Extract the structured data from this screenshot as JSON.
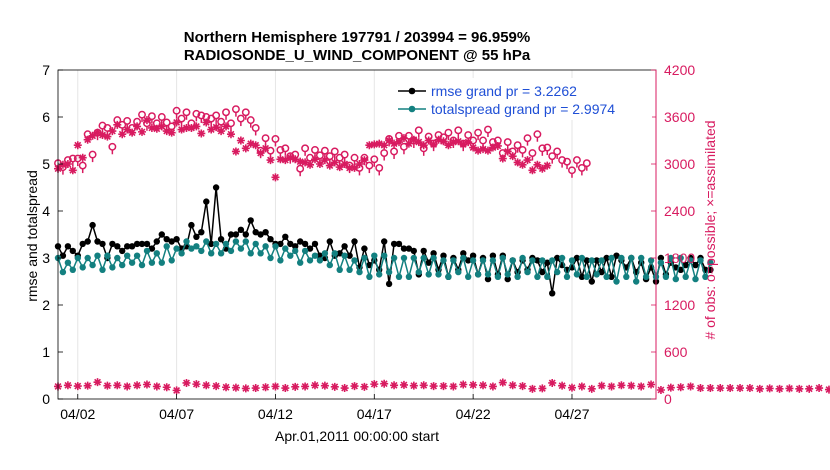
{
  "chart_data": {
    "type": "line",
    "title_line1": "Northern Hemisphere 197791 / 203994 = 96.959%",
    "title_line2": "RADIOSONDE_U_WIND_COMPONENT @ 55 hPa",
    "xlabel": "Apr.01,2011 00:00:00 start",
    "ylabel_left": "rmse and totalspread",
    "ylabel_right": "# of obs: o=possible; ×=assimilated",
    "xlim": [
      0.5,
      30.75
    ],
    "ylim_left": [
      0,
      7
    ],
    "ylim_right": [
      0,
      4200
    ],
    "x_ticks": [
      {
        "x": 1.5,
        "label": "04/02"
      },
      {
        "x": 6.5,
        "label": "04/07"
      },
      {
        "x": 11.5,
        "label": "04/12"
      },
      {
        "x": 16.5,
        "label": "04/17"
      },
      {
        "x": 21.5,
        "label": "04/22"
      },
      {
        "x": 26.5,
        "label": "04/27"
      }
    ],
    "y_ticks_left": [
      "0",
      "1",
      "2",
      "3",
      "4",
      "5",
      "6",
      "7"
    ],
    "y_ticks_right": [
      "0",
      "600",
      "1200",
      "1800",
      "2400",
      "3000",
      "3600",
      "4200"
    ],
    "colors": {
      "rmse": "#000000",
      "totalspread": "#138080",
      "obs": "#d81b60",
      "right_axis": "#d81b60",
      "legend_text": "#1f4fd6"
    },
    "legend": [
      {
        "name": "rmse",
        "label": "rmse grand pr = 3.2262"
      },
      {
        "name": "totalspread",
        "label": "totalspread grand pr = 2.9974"
      }
    ],
    "series": [
      {
        "name": "rmse",
        "axis": "left",
        "x_start": 0.5,
        "x_step": 0.25,
        "values": [
          3.25,
          3.05,
          3.25,
          3.15,
          3.05,
          3.3,
          3.35,
          3.7,
          3.35,
          3.3,
          3.0,
          3.3,
          3.25,
          3.15,
          3.25,
          3.25,
          3.3,
          3.3,
          3.3,
          3.2,
          3.35,
          3.5,
          3.4,
          3.35,
          3.4,
          3.2,
          3.25,
          3.7,
          3.45,
          3.55,
          4.2,
          3.3,
          4.5,
          3.4,
          3.2,
          3.5,
          3.5,
          3.6,
          3.5,
          3.8,
          3.55,
          3.5,
          3.55,
          3.4,
          3.3,
          3.3,
          3.45,
          3.3,
          3.25,
          3.35,
          3.3,
          3.2,
          3.3,
          3.05,
          3.0,
          3.35,
          3.05,
          3.1,
          3.25,
          3.05,
          3.35,
          2.8,
          3.2,
          2.85,
          2.95,
          2.75,
          3.35,
          2.45,
          3.3,
          3.3,
          3.2,
          3.2,
          3.15,
          2.65,
          3.15,
          2.9,
          3.1,
          2.75,
          3.05,
          2.6,
          3.0,
          2.75,
          3.1,
          2.95,
          3.05,
          2.65,
          3.0,
          2.55,
          3.05,
          2.65,
          3.05,
          2.55,
          2.95,
          2.7,
          2.95,
          2.75,
          3.0,
          2.95,
          2.7,
          2.9,
          2.25,
          3.0,
          2.85,
          2.75,
          2.8,
          3.0,
          2.6,
          2.95,
          2.5,
          2.95,
          2.7,
          3.0,
          2.6,
          3.05,
          2.95,
          2.8,
          3.0,
          2.7,
          2.9,
          2.55,
          2.8,
          2.5,
          3.0,
          2.65,
          2.9,
          2.8,
          2.75,
          2.85,
          3.0,
          2.85,
          3.0,
          2.75,
          2.75
        ]
      },
      {
        "name": "totalspread",
        "axis": "left",
        "x_start": 0.5,
        "x_step": 0.25,
        "values": [
          3.0,
          2.7,
          2.9,
          2.75,
          3.0,
          2.8,
          3.0,
          2.85,
          3.05,
          2.75,
          3.05,
          2.8,
          3.0,
          2.85,
          3.05,
          2.9,
          3.05,
          2.85,
          3.15,
          2.9,
          3.1,
          2.9,
          3.25,
          2.95,
          3.2,
          3.1,
          3.35,
          3.2,
          3.25,
          3.15,
          3.35,
          3.1,
          3.3,
          3.1,
          3.3,
          3.15,
          3.35,
          3.2,
          3.35,
          3.1,
          3.3,
          3.1,
          3.25,
          3.0,
          3.25,
          2.95,
          3.2,
          3.05,
          3.15,
          2.9,
          3.15,
          2.95,
          3.05,
          2.95,
          3.1,
          2.85,
          3.1,
          2.75,
          3.05,
          2.75,
          2.95,
          2.7,
          3.0,
          2.6,
          3.05,
          2.65,
          3.05,
          2.7,
          3.0,
          2.6,
          3.0,
          2.6,
          3.0,
          2.7,
          3.0,
          2.65,
          3.0,
          2.65,
          2.95,
          2.6,
          2.95,
          2.7,
          3.0,
          2.6,
          2.95,
          2.65,
          2.95,
          2.65,
          2.95,
          2.6,
          3.0,
          2.65,
          2.95,
          2.6,
          3.0,
          2.7,
          2.95,
          2.6,
          2.95,
          2.6,
          2.95,
          2.7,
          3.0,
          2.6,
          2.95,
          2.65,
          3.0,
          2.6,
          2.95,
          2.65,
          2.95,
          2.6,
          3.0,
          2.5,
          3.0,
          2.6,
          3.0,
          2.5,
          3.0,
          2.6,
          2.95,
          2.6,
          2.9,
          2.6,
          3.0,
          2.55,
          3.0,
          2.6,
          2.95,
          2.55,
          2.95,
          2.6,
          2.9
        ]
      },
      {
        "name": "obs_possible",
        "axis": "right",
        "x_start": 0.5,
        "x_step": 0.25,
        "values": [
          3010,
          2960,
          3050,
          3070,
          3070,
          2980,
          3380,
          3120,
          3400,
          3490,
          3460,
          3220,
          3560,
          3500,
          3550,
          3460,
          3540,
          3630,
          3520,
          3610,
          3520,
          3600,
          3530,
          3480,
          3680,
          3580,
          3660,
          3520,
          3640,
          3620,
          3600,
          3580,
          3620,
          3540,
          3660,
          3520,
          3700,
          3580,
          3660,
          3560,
          3460,
          3170,
          3330,
          3170,
          3320,
          3180,
          3200,
          3100,
          3120,
          2940,
          3200,
          3080,
          3180,
          3110,
          3170,
          3100,
          3160,
          3080,
          3120,
          2980,
          3080,
          2950,
          3080,
          2980,
          3060,
          2950,
          3140,
          3320,
          3160,
          3360,
          3220,
          3360,
          3300,
          3430,
          3200,
          3350,
          3260,
          3370,
          3340,
          3400,
          3300,
          3430,
          3260,
          3370,
          3300,
          3400,
          3300,
          3440,
          3280,
          3300,
          3140,
          3280,
          3160,
          3240,
          3180,
          3330,
          3140,
          3380,
          3200,
          3210,
          3100,
          3160,
          3050,
          3030,
          2920,
          3050,
          2950,
          3010
        ]
      },
      {
        "name": "obs_assimilated",
        "axis": "right",
        "x_start": 0.5,
        "x_step": 0.25,
        "values": [
          2940,
          2990,
          3000,
          2920,
          3240,
          3080,
          3310,
          3360,
          3400,
          3370,
          3350,
          3420,
          3500,
          3380,
          3440,
          3400,
          3480,
          3410,
          3560,
          3460,
          3450,
          3480,
          3420,
          3400,
          3530,
          3440,
          3460,
          3460,
          3480,
          3390,
          3530,
          3440,
          3470,
          3420,
          3480,
          3380,
          3160,
          3300,
          3200,
          3260,
          3240,
          3140,
          3200,
          3050,
          2830,
          3060,
          3050,
          3080,
          3060,
          3030,
          3020,
          2990,
          3060,
          3000,
          3050,
          2980,
          3020,
          2960,
          3000,
          2950,
          2950,
          3000,
          3050,
          3240,
          3250,
          3260,
          3240,
          3300,
          3260,
          3280,
          3330,
          3260,
          3310,
          3280,
          3240,
          3300,
          3250,
          3310,
          3290,
          3240,
          3280,
          3290,
          3250,
          3280,
          3210,
          3170,
          3190,
          3170,
          3210,
          3230,
          3070,
          3160,
          3100,
          3020,
          2990,
          3050,
          2920,
          2990,
          2940,
          2980
        ]
      },
      {
        "name": "obs_lower",
        "axis": "right",
        "x_start": 0.5,
        "x_step": 0.5,
        "values": [
          160,
          175,
          165,
          170,
          215,
          170,
          175,
          160,
          175,
          185,
          160,
          150,
          110,
          205,
          190,
          175,
          165,
          150,
          145,
          135,
          140,
          150,
          160,
          140,
          155,
          160,
          175,
          170,
          155,
          140,
          165,
          155,
          190,
          195,
          175,
          180,
          170,
          175,
          165,
          165,
          160,
          185,
          180,
          175,
          160,
          210,
          175,
          165,
          130,
          135,
          205,
          170,
          145,
          160,
          130,
          170,
          160,
          175,
          170,
          160,
          185,
          115,
          145,
          150,
          160,
          140,
          140,
          140,
          140,
          140,
          140,
          130,
          135,
          130,
          135,
          130,
          130,
          140,
          120,
          160,
          30
        ]
      }
    ]
  }
}
